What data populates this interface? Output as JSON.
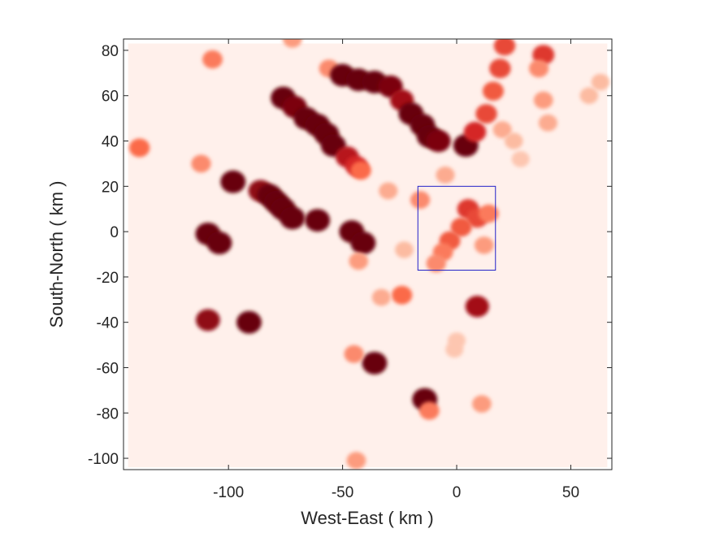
{
  "chart_data": {
    "type": "heatmap",
    "title": "",
    "xlabel": "West-East ( km )",
    "ylabel": "South-North ( km )",
    "xlim": [
      -146,
      68
    ],
    "ylim": [
      -105,
      85
    ],
    "xticks": [
      -100,
      -50,
      0,
      50
    ],
    "yticks": [
      80,
      60,
      40,
      20,
      0,
      -20,
      -40,
      -60,
      -80,
      -100
    ],
    "xtick_labels": [
      "-100",
      "-50",
      "0",
      "50"
    ],
    "ytick_labels": [
      "80",
      "60",
      "40",
      "20",
      "0",
      "-20",
      "-40",
      "-60",
      "-80",
      "-100"
    ],
    "grid": false,
    "colormap": "Reds",
    "background_color": "#fff0eb",
    "highlight_box": {
      "x": [
        -17,
        17
      ],
      "y": [
        -17,
        20
      ],
      "color": "#2020c8"
    },
    "cells": [
      {
        "x": -72,
        "y": 85,
        "v": 0.35
      },
      {
        "x": -107,
        "y": 76,
        "v": 0.45
      },
      {
        "x": -139,
        "y": 37,
        "v": 0.5
      },
      {
        "x": -112,
        "y": 30,
        "v": 0.4
      },
      {
        "x": -56,
        "y": 72,
        "v": 0.4
      },
      {
        "x": -50,
        "y": 69,
        "v": 1.0
      },
      {
        "x": -43,
        "y": 67,
        "v": 1.0
      },
      {
        "x": -36,
        "y": 66,
        "v": 1.0
      },
      {
        "x": -29,
        "y": 64,
        "v": 0.95
      },
      {
        "x": -24,
        "y": 58,
        "v": 0.85
      },
      {
        "x": -20,
        "y": 52,
        "v": 1.0
      },
      {
        "x": -15,
        "y": 47,
        "v": 1.0
      },
      {
        "x": -12,
        "y": 42,
        "v": 1.0
      },
      {
        "x": -8,
        "y": 40,
        "v": 0.95
      },
      {
        "x": -76,
        "y": 59,
        "v": 1.0
      },
      {
        "x": -71,
        "y": 55,
        "v": 0.95
      },
      {
        "x": -66,
        "y": 50,
        "v": 1.0
      },
      {
        "x": -61,
        "y": 47,
        "v": 1.0
      },
      {
        "x": -57,
        "y": 43,
        "v": 1.0
      },
      {
        "x": -54,
        "y": 38,
        "v": 1.0
      },
      {
        "x": -48,
        "y": 33,
        "v": 0.8
      },
      {
        "x": -44,
        "y": 29,
        "v": 0.7
      },
      {
        "x": -42,
        "y": 27,
        "v": 0.5
      },
      {
        "x": -98,
        "y": 22,
        "v": 1.0
      },
      {
        "x": -86,
        "y": 18,
        "v": 0.9
      },
      {
        "x": -82,
        "y": 16,
        "v": 1.0
      },
      {
        "x": -79,
        "y": 13,
        "v": 1.0
      },
      {
        "x": -76,
        "y": 10,
        "v": 1.0
      },
      {
        "x": -72,
        "y": 6,
        "v": 1.0
      },
      {
        "x": -61,
        "y": 5,
        "v": 1.0
      },
      {
        "x": -109,
        "y": -1,
        "v": 1.0
      },
      {
        "x": -104,
        "y": -5,
        "v": 1.0
      },
      {
        "x": -46,
        "y": 0,
        "v": 1.0
      },
      {
        "x": -41,
        "y": -5,
        "v": 1.0
      },
      {
        "x": -43,
        "y": -13,
        "v": 0.35
      },
      {
        "x": -91,
        "y": -40,
        "v": 1.0
      },
      {
        "x": -109,
        "y": -39,
        "v": 0.9
      },
      {
        "x": -36,
        "y": -58,
        "v": 1.0
      },
      {
        "x": -45,
        "y": -54,
        "v": 0.4
      },
      {
        "x": -14,
        "y": -74,
        "v": 1.0
      },
      {
        "x": -12,
        "y": -79,
        "v": 0.45
      },
      {
        "x": 9,
        "y": -33,
        "v": 0.85
      },
      {
        "x": -24,
        "y": -28,
        "v": 0.5
      },
      {
        "x": -33,
        "y": -29,
        "v": 0.3
      },
      {
        "x": 11,
        "y": -76,
        "v": 0.35
      },
      {
        "x": -44,
        "y": -101,
        "v": 0.35
      },
      {
        "x": 4,
        "y": 38,
        "v": 1.0
      },
      {
        "x": 8,
        "y": 44,
        "v": 0.7
      },
      {
        "x": 13,
        "y": 52,
        "v": 0.6
      },
      {
        "x": 16,
        "y": 62,
        "v": 0.55
      },
      {
        "x": 19,
        "y": 72,
        "v": 0.6
      },
      {
        "x": 21,
        "y": 82,
        "v": 0.6
      },
      {
        "x": 38,
        "y": 78,
        "v": 0.65
      },
      {
        "x": 36,
        "y": 72,
        "v": 0.4
      },
      {
        "x": 38,
        "y": 58,
        "v": 0.35
      },
      {
        "x": 40,
        "y": 48,
        "v": 0.3
      },
      {
        "x": 58,
        "y": 60,
        "v": 0.25
      },
      {
        "x": 63,
        "y": 66,
        "v": 0.25
      },
      {
        "x": 20,
        "y": 45,
        "v": 0.3
      },
      {
        "x": 25,
        "y": 40,
        "v": 0.25
      },
      {
        "x": 5,
        "y": 10,
        "v": 0.65
      },
      {
        "x": 9,
        "y": 6,
        "v": 0.6
      },
      {
        "x": 2,
        "y": 2,
        "v": 0.55
      },
      {
        "x": -3,
        "y": -4,
        "v": 0.55
      },
      {
        "x": -6,
        "y": -9,
        "v": 0.45
      },
      {
        "x": -9,
        "y": -14,
        "v": 0.4
      },
      {
        "x": 12,
        "y": -6,
        "v": 0.35
      },
      {
        "x": 14,
        "y": 8,
        "v": 0.45
      },
      {
        "x": -16,
        "y": 14,
        "v": 0.4
      },
      {
        "x": -30,
        "y": 18,
        "v": 0.3
      },
      {
        "x": -5,
        "y": 25,
        "v": 0.3
      },
      {
        "x": 28,
        "y": 32,
        "v": 0.2
      },
      {
        "x": -23,
        "y": -8,
        "v": 0.25
      },
      {
        "x": 0,
        "y": -48,
        "v": 0.2
      },
      {
        "x": -1,
        "y": -52,
        "v": 0.2
      }
    ]
  }
}
